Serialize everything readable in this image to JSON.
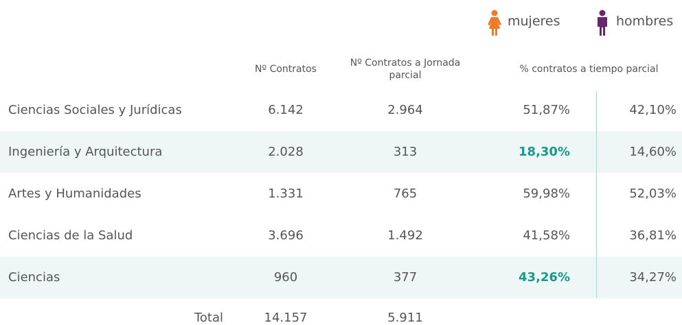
{
  "legend": {
    "women": "mujeres",
    "men": "hombres",
    "women_color": "#f07a2a",
    "men_color": "#6b2470"
  },
  "table": {
    "headers": [
      "Nº Contratos",
      "Nº Contratos a Jornada parcial",
      "% contratos a tiempo parcial"
    ],
    "rows": [
      {
        "label": "Ciencias Sociales y Jurídicas",
        "cells": [
          "6.142",
          "2.964",
          "51,87%",
          "42,10%"
        ]
      },
      {
        "label": "Ingeniería y Arquitectura",
        "cells": [
          "2.028",
          "313",
          "18,30%",
          "14,60%"
        ],
        "shaded": true,
        "emphasis": 2
      },
      {
        "label": "Artes y Humanidades",
        "cells": [
          "1.331",
          "765",
          "59,98%",
          "52,03%"
        ]
      },
      {
        "label": "Ciencias de la Salud",
        "cells": [
          "3.696",
          "1.492",
          "41,58%",
          "36,81%"
        ]
      },
      {
        "label": "Ciencias",
        "cells": [
          "960",
          "377",
          "43,26%",
          "34,27%"
        ],
        "shaded": true,
        "emphasis": 2
      }
    ],
    "total": {
      "label": "Total",
      "cells": [
        "14.157",
        "5.911"
      ]
    }
  }
}
